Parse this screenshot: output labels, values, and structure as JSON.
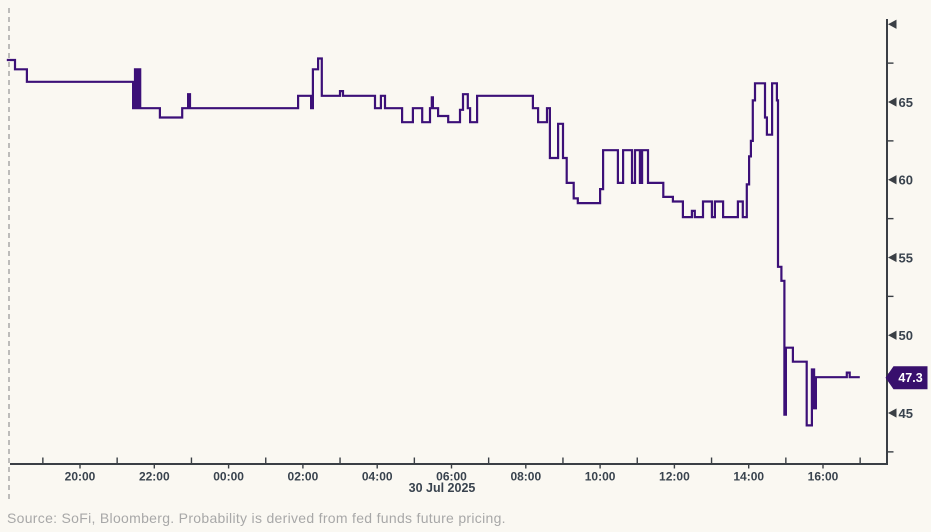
{
  "chart_data": {
    "type": "line",
    "style": "step",
    "description": "Intraday probability derived from fed funds future pricing",
    "last_value": 47.3,
    "last_value_label": "47.3",
    "x_axis": {
      "date_label": "30 Jul 2025",
      "tick_labels": [
        "20:00",
        "22:00",
        "00:00",
        "02:00",
        "04:00",
        "06:00",
        "08:00",
        "10:00",
        "12:00",
        "14:00",
        "16:00"
      ],
      "tick_positions_hours": [
        2,
        4,
        6,
        8,
        10,
        12,
        14,
        16,
        18,
        20,
        22
      ],
      "minor_tick_positions_hours": [
        1,
        3,
        5,
        7,
        9,
        11,
        13,
        15,
        17,
        19,
        21,
        23
      ]
    },
    "y_axis": {
      "tick_labels": [
        "65",
        "60",
        "55",
        "50",
        "45"
      ],
      "tick_values": [
        65,
        60,
        55,
        50,
        45
      ],
      "minor_tick_values": [
        67.5,
        62.5,
        57.5,
        52.5,
        47.5,
        42.5
      ],
      "axis_top_arrow_value": 70
    },
    "series": [
      {
        "name": "rate-cut-probability",
        "color": "#3c1078",
        "points": [
          [
            0.03,
            67.7
          ],
          [
            0.25,
            67.1
          ],
          [
            0.57,
            66.3
          ],
          [
            3.43,
            64.6
          ],
          [
            3.48,
            67.1
          ],
          [
            3.53,
            64.6
          ],
          [
            3.57,
            67.1
          ],
          [
            3.62,
            64.6
          ],
          [
            4.15,
            64.0
          ],
          [
            4.75,
            64.6
          ],
          [
            4.91,
            65.5
          ],
          [
            4.96,
            64.6
          ],
          [
            7.87,
            65.4
          ],
          [
            8.22,
            64.6
          ],
          [
            8.27,
            67.1
          ],
          [
            8.41,
            67.8
          ],
          [
            8.51,
            65.4
          ],
          [
            9.0,
            65.7
          ],
          [
            9.08,
            65.4
          ],
          [
            9.94,
            64.6
          ],
          [
            10.1,
            65.4
          ],
          [
            10.21,
            64.6
          ],
          [
            10.67,
            63.7
          ],
          [
            10.96,
            64.6
          ],
          [
            11.21,
            63.7
          ],
          [
            11.42,
            64.6
          ],
          [
            11.47,
            65.3
          ],
          [
            11.5,
            64.6
          ],
          [
            11.64,
            64.1
          ],
          [
            11.91,
            63.7
          ],
          [
            12.23,
            64.5
          ],
          [
            12.31,
            65.5
          ],
          [
            12.44,
            64.6
          ],
          [
            12.5,
            63.7
          ],
          [
            12.69,
            65.4
          ],
          [
            14.19,
            64.6
          ],
          [
            14.33,
            63.7
          ],
          [
            14.57,
            64.6
          ],
          [
            14.65,
            61.4
          ],
          [
            14.87,
            63.6
          ],
          [
            15.0,
            61.4
          ],
          [
            15.1,
            59.8
          ],
          [
            15.29,
            58.8
          ],
          [
            15.4,
            58.5
          ],
          [
            16.0,
            59.4
          ],
          [
            16.08,
            61.9
          ],
          [
            16.48,
            59.8
          ],
          [
            16.62,
            61.9
          ],
          [
            16.86,
            59.8
          ],
          [
            16.94,
            61.9
          ],
          [
            17.07,
            59.8
          ],
          [
            17.13,
            61.9
          ],
          [
            17.29,
            59.8
          ],
          [
            17.7,
            58.9
          ],
          [
            17.96,
            58.6
          ],
          [
            18.23,
            57.6
          ],
          [
            18.47,
            58.0
          ],
          [
            18.55,
            57.6
          ],
          [
            18.77,
            58.6
          ],
          [
            19.01,
            57.6
          ],
          [
            19.09,
            58.6
          ],
          [
            19.31,
            57.6
          ],
          [
            19.71,
            58.6
          ],
          [
            19.84,
            57.6
          ],
          [
            19.95,
            59.7
          ],
          [
            20.01,
            61.5
          ],
          [
            20.06,
            62.5
          ],
          [
            20.11,
            65.1
          ],
          [
            20.17,
            66.2
          ],
          [
            20.44,
            64.0
          ],
          [
            20.49,
            62.9
          ],
          [
            20.63,
            66.2
          ],
          [
            20.76,
            65.1
          ],
          [
            20.79,
            54.4
          ],
          [
            20.88,
            53.5
          ],
          [
            20.96,
            44.9
          ],
          [
            21.0,
            49.2
          ],
          [
            21.19,
            48.3
          ],
          [
            21.56,
            44.2
          ],
          [
            21.7,
            47.8
          ],
          [
            21.76,
            45.3
          ],
          [
            21.81,
            47.3
          ],
          [
            22.64,
            47.6
          ],
          [
            22.72,
            47.3
          ],
          [
            22.99,
            47.3
          ]
        ]
      }
    ],
    "colors": {
      "background": "#faf8f2",
      "axis": "#3a3f45",
      "tick_label": "#39434e",
      "badge_bg": "#38106d",
      "badge_text": "#ffffff",
      "session_line": "#a3a3a3",
      "source_text": "#a8a8a8"
    }
  },
  "footer": {
    "source_text": "Source: SoFi, Bloomberg. Probability is derived from fed funds future pricing."
  }
}
